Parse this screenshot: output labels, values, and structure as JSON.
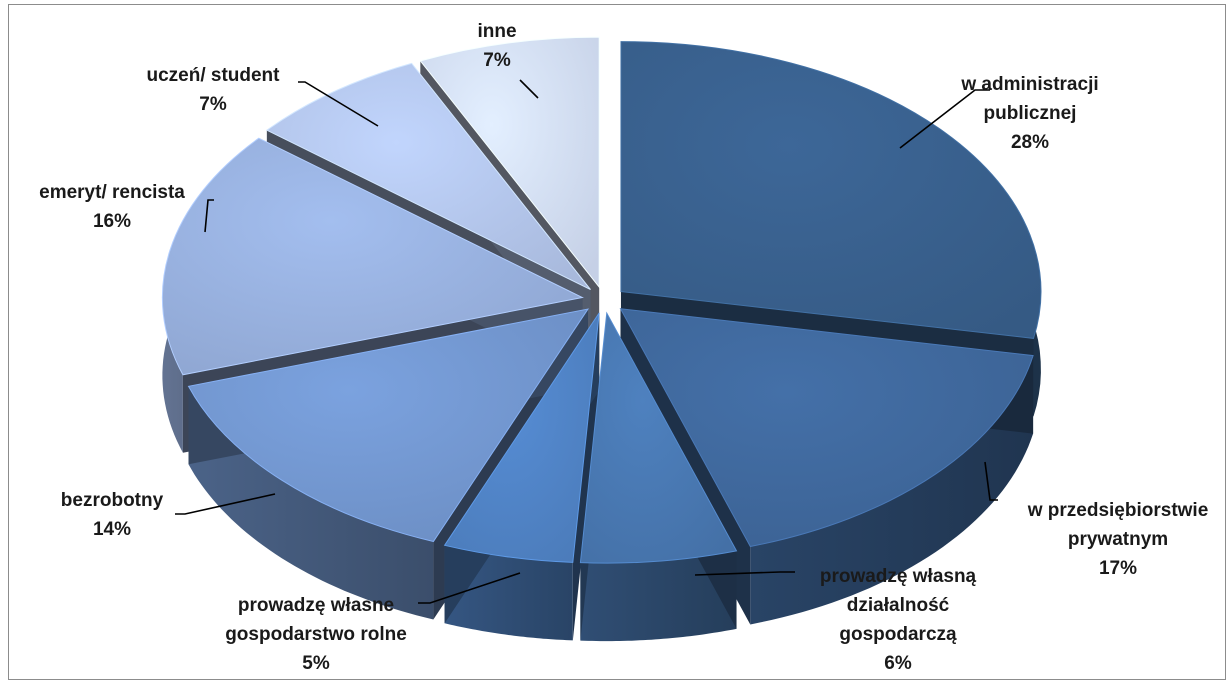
{
  "chart_data": {
    "type": "pie",
    "style": "3d-exploded",
    "title": "",
    "legend": "none",
    "slices": [
      {
        "label": [
          "w administracji",
          "publicznej"
        ],
        "value": 28,
        "value_label": "28%",
        "color": "#355a84"
      },
      {
        "label": [
          "w przedsiębiorstwie",
          "prywatnym"
        ],
        "value": 17,
        "value_label": "17%",
        "color": "#3b6192"
      },
      {
        "label": [
          "prowadzę własną",
          "działalność",
          "gospodarczą"
        ],
        "value": 6,
        "value_label": "6%",
        "color": "#4470a6"
      },
      {
        "label": [
          "prowadzę własne",
          "gospodarstwo rolne"
        ],
        "value": 5,
        "value_label": "5%",
        "color": "#4b7bb9"
      },
      {
        "label": [
          "bezrobotny"
        ],
        "value": 14,
        "value_label": "14%",
        "color": "#6b8dc2"
      },
      {
        "label": [
          "emeryt/ rencista"
        ],
        "value": 16,
        "value_label": "16%",
        "color": "#8ea5d0"
      },
      {
        "label": [
          "uczeń/ student"
        ],
        "value": 7,
        "value_label": "7%",
        "color": "#a8b9dc"
      },
      {
        "label": [
          "inne"
        ],
        "value": 7,
        "value_label": "7%",
        "color": "#c5d0e6"
      }
    ]
  }
}
